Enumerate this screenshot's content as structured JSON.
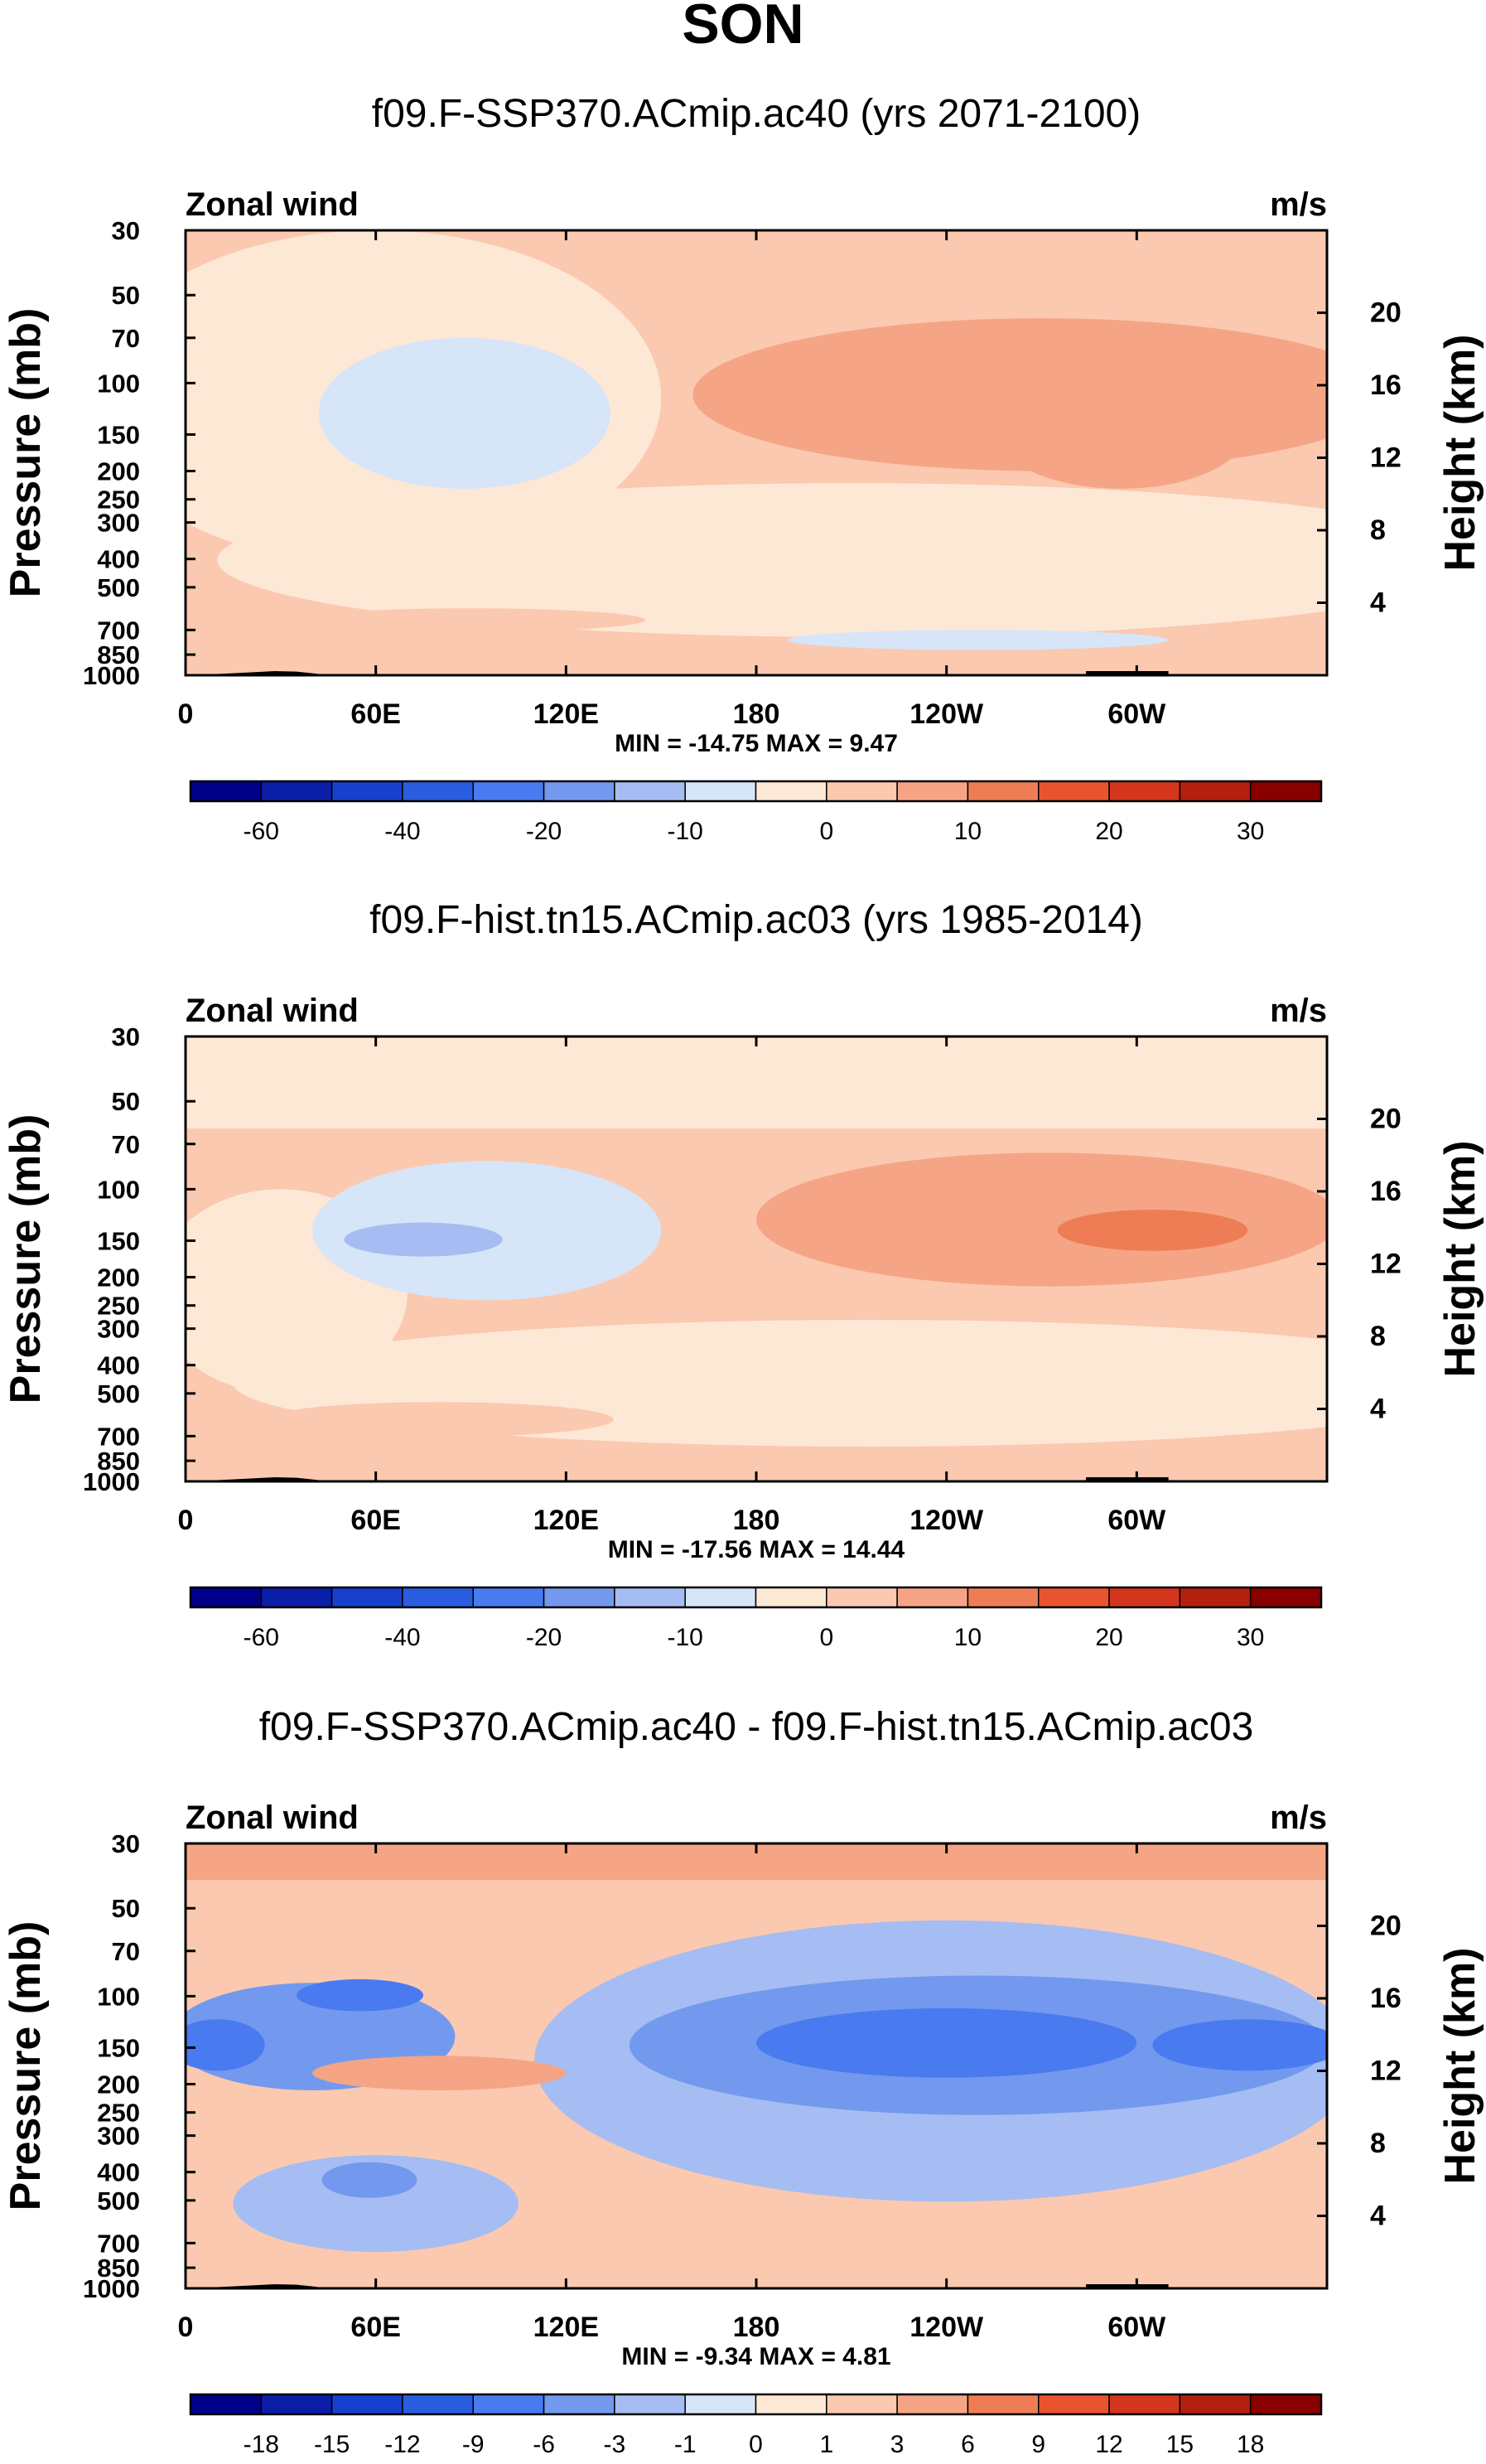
{
  "page": {
    "title": "SON"
  },
  "colors": {
    "frame": "#000000",
    "topography": "#000000"
  },
  "chart_data": [
    {
      "type": "heatmap",
      "title": "f09.F-SSP370.ACmip.ac40 (yrs 2071-2100)",
      "left_label": "Zonal wind",
      "right_label": "m/s",
      "ylabel": "Pressure (mb)",
      "ylabel_right": "Height (km)",
      "x_ticks": [
        "0",
        "60E",
        "120E",
        "180",
        "120W",
        "60W"
      ],
      "x_tick_values": [
        0,
        60,
        120,
        180,
        240,
        300
      ],
      "xlim": [
        0,
        360
      ],
      "y_ticks": [
        "30",
        "50",
        "70",
        "100",
        "150",
        "200",
        "250",
        "300",
        "400",
        "500",
        "700",
        "850",
        "1000"
      ],
      "y_tick_values": [
        30,
        50,
        70,
        100,
        150,
        200,
        250,
        300,
        400,
        500,
        700,
        850,
        1000
      ],
      "ylim": [
        1000,
        30
      ],
      "y_right_ticks": [
        "4",
        "8",
        "12",
        "16",
        "20"
      ],
      "y_right_values": [
        4,
        8,
        12,
        16,
        20
      ],
      "stats_text": "MIN = -14.75  MAX =  9.47",
      "min": -14.75,
      "max": 9.47,
      "colorbar": {
        "levels": [
          -70,
          -60,
          -50,
          -40,
          -30,
          -20,
          -15,
          -10,
          -5,
          0,
          5,
          10,
          15,
          20,
          25,
          30
        ],
        "labels": [
          "-60",
          "-40",
          "-20",
          "-10",
          "0",
          "10",
          "20",
          "30"
        ],
        "label_boundaries": [
          1,
          3,
          5,
          7,
          9,
          11,
          13,
          15
        ],
        "colors": [
          "#000088",
          "#0a1ea8",
          "#1740cf",
          "#2a5de0",
          "#4a7af0",
          "#7399ee",
          "#a5bdf2",
          "#d6e5f8",
          "#fde8d6",
          "#fbc9b0",
          "#f5a585",
          "#ee7d55",
          "#e85430",
          "#d3361d",
          "#b3200f",
          "#880000"
        ]
      },
      "regions": [
        {
          "shape": "background",
          "value": 2
        },
        {
          "shape": "ellipse",
          "lon": 210,
          "p": 480,
          "dlon": 200,
          "dp": 520,
          "value": -3
        },
        {
          "shape": "ellipse",
          "lon": 60,
          "p": 220,
          "dlon": 90,
          "dp": 400,
          "value": -3
        },
        {
          "shape": "ellipse",
          "lon": 88,
          "p": 150,
          "dlon": 46,
          "dp": 160,
          "value": -7
        },
        {
          "shape": "ellipse",
          "lon": 270,
          "p": 130,
          "dlon": 110,
          "dp": 140,
          "value": 5
        },
        {
          "shape": "ellipse",
          "lon": 295,
          "p": 160,
          "dlon": 40,
          "dp": 140,
          "value": 8
        },
        {
          "shape": "ellipse",
          "lon": 90,
          "p": 650,
          "dlon": 55,
          "dp": 120,
          "value": 4
        },
        {
          "shape": "ellipse",
          "lon": 250,
          "p": 760,
          "dlon": 60,
          "dp": 120,
          "value": -7
        }
      ]
    },
    {
      "type": "heatmap",
      "title": "f09.F-hist.tn15.ACmip.ac03 (yrs 1985-2014)",
      "left_label": "Zonal wind",
      "right_label": "m/s",
      "ylabel": "Pressure (mb)",
      "ylabel_right": "Height (km)",
      "x_ticks": [
        "0",
        "60E",
        "120E",
        "180",
        "120W",
        "60W"
      ],
      "x_tick_values": [
        0,
        60,
        120,
        180,
        240,
        300
      ],
      "xlim": [
        0,
        360
      ],
      "y_ticks": [
        "30",
        "50",
        "70",
        "100",
        "150",
        "200",
        "250",
        "300",
        "400",
        "500",
        "700",
        "850",
        "1000"
      ],
      "y_tick_values": [
        30,
        50,
        70,
        100,
        150,
        200,
        250,
        300,
        400,
        500,
        700,
        850,
        1000
      ],
      "ylim": [
        1000,
        30
      ],
      "y_right_ticks": [
        "4",
        "8",
        "12",
        "16",
        "20"
      ],
      "y_right_values": [
        4,
        8,
        12,
        16,
        20
      ],
      "stats_text": "MIN = -17.56  MAX = 14.44",
      "min": -17.56,
      "max": 14.44,
      "colorbar": {
        "levels": [
          -70,
          -60,
          -50,
          -40,
          -30,
          -20,
          -15,
          -10,
          -5,
          0,
          5,
          10,
          15,
          20,
          25,
          30
        ],
        "labels": [
          "-60",
          "-40",
          "-20",
          "-10",
          "0",
          "10",
          "20",
          "30"
        ],
        "label_boundaries": [
          1,
          3,
          5,
          7,
          9,
          11,
          13,
          15
        ],
        "colors": [
          "#000088",
          "#0a1ea8",
          "#1740cf",
          "#2a5de0",
          "#4a7af0",
          "#7399ee",
          "#a5bdf2",
          "#d6e5f8",
          "#fde8d6",
          "#fbc9b0",
          "#f5a585",
          "#ee7d55",
          "#e85430",
          "#d3361d",
          "#b3200f",
          "#880000"
        ]
      },
      "regions": [
        {
          "shape": "background",
          "value": 2
        },
        {
          "shape": "band",
          "p0": 30,
          "p1": 62,
          "value": -3
        },
        {
          "shape": "ellipse",
          "lon": 215,
          "p": 520,
          "dlon": 200,
          "dp": 480,
          "value": -3
        },
        {
          "shape": "ellipse",
          "lon": 30,
          "p": 300,
          "dlon": 40,
          "dp": 400,
          "value": -3
        },
        {
          "shape": "ellipse",
          "lon": 95,
          "p": 160,
          "dlon": 55,
          "dp": 160,
          "value": -7
        },
        {
          "shape": "ellipse",
          "lon": 75,
          "p": 150,
          "dlon": 25,
          "dp": 40,
          "value": -12
        },
        {
          "shape": "ellipse",
          "lon": 272,
          "p": 145,
          "dlon": 92,
          "dp": 140,
          "value": 5
        },
        {
          "shape": "ellipse",
          "lon": 275,
          "p": 145,
          "dlon": 65,
          "dp": 85,
          "value": 8
        },
        {
          "shape": "ellipse",
          "lon": 305,
          "p": 140,
          "dlon": 30,
          "dp": 45,
          "value": 12
        },
        {
          "shape": "ellipse",
          "lon": 80,
          "p": 620,
          "dlon": 55,
          "dp": 170,
          "value": 4
        }
      ]
    },
    {
      "type": "heatmap",
      "title": "f09.F-SSP370.ACmip.ac40 - f09.F-hist.tn15.ACmip.ac03",
      "left_label": "Zonal wind",
      "right_label": "m/s",
      "ylabel": "Pressure (mb)",
      "ylabel_right": "Height (km)",
      "x_ticks": [
        "0",
        "60E",
        "120E",
        "180",
        "120W",
        "60W"
      ],
      "x_tick_values": [
        0,
        60,
        120,
        180,
        240,
        300
      ],
      "xlim": [
        0,
        360
      ],
      "y_ticks": [
        "30",
        "50",
        "70",
        "100",
        "150",
        "200",
        "250",
        "300",
        "400",
        "500",
        "700",
        "850",
        "1000"
      ],
      "y_tick_values": [
        30,
        50,
        70,
        100,
        150,
        200,
        250,
        300,
        400,
        500,
        700,
        850,
        1000
      ],
      "ylim": [
        1000,
        30
      ],
      "y_right_ticks": [
        "4",
        "8",
        "12",
        "16",
        "20"
      ],
      "y_right_values": [
        4,
        8,
        12,
        16,
        20
      ],
      "stats_text": "MIN = -9.34  MAX =  4.81",
      "min": -9.34,
      "max": 4.81,
      "colorbar": {
        "levels": [
          -21,
          -18,
          -15,
          -12,
          -9,
          -6,
          -3,
          -1,
          0,
          1,
          3,
          6,
          9,
          12,
          15,
          18
        ],
        "labels": [
          "-18",
          "-15",
          "-12",
          "-9",
          "-6",
          "-3",
          "-1",
          "0",
          "1",
          "3",
          "6",
          "9",
          "12",
          "15",
          "18"
        ],
        "label_boundaries": [
          1,
          2,
          3,
          4,
          5,
          6,
          7,
          8,
          9,
          10,
          11,
          12,
          13,
          14,
          15
        ],
        "colors": [
          "#000088",
          "#0a1ea8",
          "#1740cf",
          "#2a5de0",
          "#4a7af0",
          "#7399ee",
          "#a5bdf2",
          "#d6e5f8",
          "#fde8d6",
          "#fbc9b0",
          "#f5a585",
          "#ee7d55",
          "#e85430",
          "#d3361d",
          "#b3200f",
          "#880000"
        ]
      },
      "regions": [
        {
          "shape": "background",
          "value": 2
        },
        {
          "shape": "band",
          "p0": 30,
          "p1": 40,
          "value": 4
        },
        {
          "shape": "ellipse",
          "lon": 240,
          "p": 280,
          "dlon": 130,
          "dp": 450,
          "value": -2
        },
        {
          "shape": "ellipse",
          "lon": 250,
          "p": 170,
          "dlon": 110,
          "dp": 170,
          "value": -4
        },
        {
          "shape": "ellipse",
          "lon": 240,
          "p": 150,
          "dlon": 60,
          "dp": 80,
          "value": -7
        },
        {
          "shape": "ellipse",
          "lon": 335,
          "p": 150,
          "dlon": 30,
          "dp": 60,
          "value": -7
        },
        {
          "shape": "ellipse",
          "lon": 40,
          "p": 150,
          "dlon": 45,
          "dp": 120,
          "value": -4
        },
        {
          "shape": "ellipse",
          "lon": 10,
          "p": 150,
          "dlon": 15,
          "dp": 60,
          "value": -7
        },
        {
          "shape": "ellipse",
          "lon": 55,
          "p": 100,
          "dlon": 20,
          "dp": 25,
          "value": -7
        },
        {
          "shape": "ellipse",
          "lon": 60,
          "p": 550,
          "dlon": 45,
          "dp": 400,
          "value": -2
        },
        {
          "shape": "ellipse",
          "lon": 58,
          "p": 430,
          "dlon": 15,
          "dp": 120,
          "value": -4
        },
        {
          "shape": "ellipse",
          "lon": 80,
          "p": 185,
          "dlon": 40,
          "dp": 50,
          "value": 4
        }
      ]
    }
  ]
}
